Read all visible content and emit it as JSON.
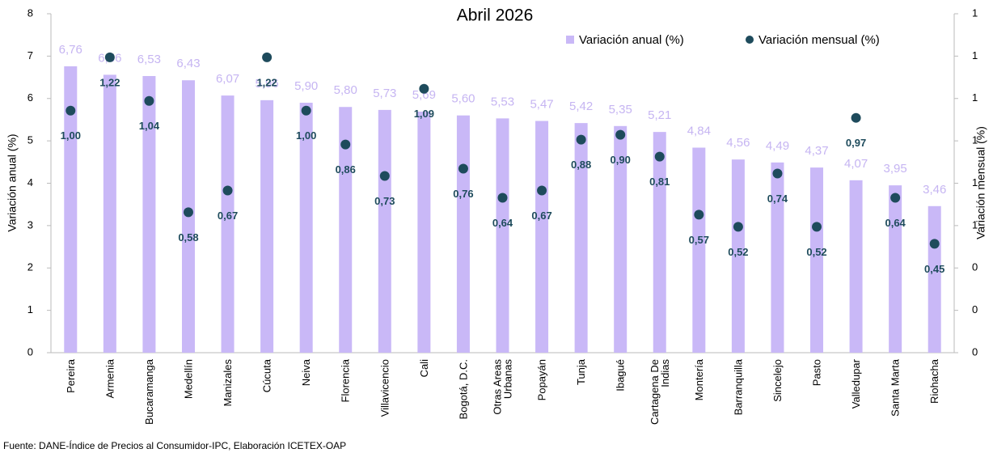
{
  "chart_data": {
    "type": "bar+scatter",
    "title": "Abril 2026",
    "y_label": "Variación anual (%)",
    "y2_label": "Variación mensual (%)",
    "source": "Fuente: DANE-Índice de Precios al Consumidor-IPC, Elaboración ICETEX-OAP",
    "categories": [
      "Pereira",
      "Armenia",
      "Bucaramanga",
      "Medellín",
      "Manizales",
      "Cúcuta",
      "Neiva",
      "Florencia",
      "Villavicencio",
      "Cali",
      "Bogotá, D.C.",
      "Otras Areas Urbanas",
      "Popayán",
      "Tunja",
      "Ibagué",
      "Cartagena De Indias",
      "Montería",
      "Barranquilla",
      "Sincelejo",
      "Pasto",
      "Valledupar",
      "Santa Marta",
      "Riohacha"
    ],
    "series": [
      {
        "name": "Variación anual (%)",
        "type": "bar",
        "color": "#c9b8f7",
        "values": [
          6.76,
          6.56,
          6.53,
          6.43,
          6.07,
          5.96,
          5.9,
          5.8,
          5.73,
          5.69,
          5.6,
          5.53,
          5.47,
          5.42,
          5.35,
          5.21,
          4.84,
          4.56,
          4.49,
          4.37,
          4.07,
          3.95,
          3.46
        ],
        "value_labels": [
          "6,76",
          "6,56",
          "6,53",
          "6,43",
          "6,07",
          "5,96",
          "5,90",
          "5,80",
          "5,73",
          "5,69",
          "5,60",
          "5,53",
          "5,47",
          "5,42",
          "5,35",
          "5,21",
          "4,84",
          "4,56",
          "4,49",
          "4,37",
          "4,07",
          "3,95",
          "3,46"
        ]
      },
      {
        "name": "Variación mensual (%)",
        "type": "scatter",
        "axis": "y2",
        "color": "#1e4b5c",
        "values": [
          1.0,
          1.22,
          1.04,
          0.58,
          0.67,
          1.22,
          1.0,
          0.86,
          0.73,
          1.09,
          0.76,
          0.64,
          0.67,
          0.88,
          0.9,
          0.81,
          0.57,
          0.52,
          0.74,
          0.52,
          0.97,
          0.64,
          0.45
        ],
        "value_labels": [
          "1,00",
          "1,22",
          "1,04",
          "0,58",
          "0,67",
          "1,22",
          "1,00",
          "0,86",
          "0,73",
          "1,09",
          "0,76",
          "0,64",
          "0,67",
          "0,88",
          "0,90",
          "0,81",
          "0,57",
          "0,52",
          "0,74",
          "0,52",
          "0,97",
          "0,64",
          "0,45"
        ]
      }
    ],
    "ylim": [
      0,
      8
    ],
    "yticks": [
      0,
      1,
      2,
      3,
      4,
      5,
      6,
      7,
      8
    ],
    "y2lim": [
      0,
      1.4
    ],
    "y2ticks": [
      0,
      {
        "value": 0.175,
        "label": "0"
      },
      {
        "value": 0.35,
        "label": "0"
      },
      {
        "value": 0.525,
        "label": "1"
      },
      {
        "value": 0.7,
        "label": "1"
      },
      {
        "value": 0.875,
        "label": "1"
      },
      {
        "value": 1.05,
        "label": "1"
      },
      {
        "value": 1.225,
        "label": "1"
      },
      {
        "value": 1.4,
        "label": "1"
      }
    ],
    "legend": "top-right"
  }
}
